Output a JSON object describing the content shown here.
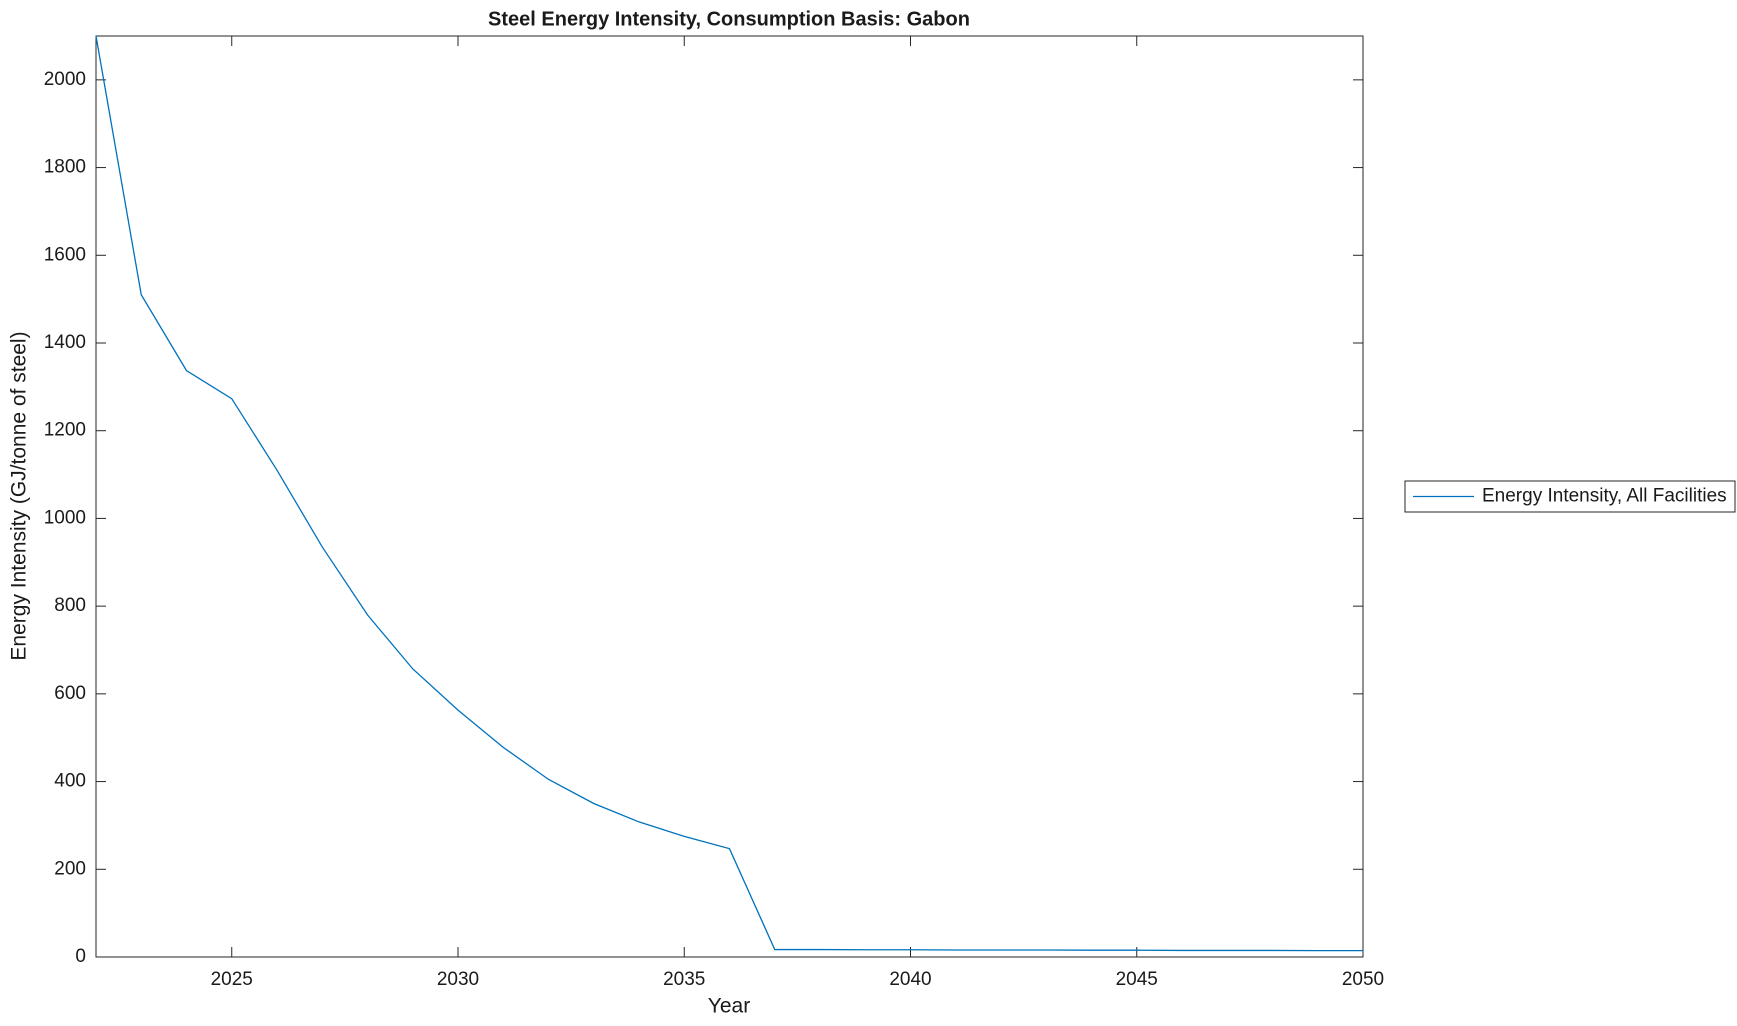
{
  "chart_data": {
    "type": "line",
    "title": "Steel Energy Intensity, Consumption Basis: Gabon",
    "x_label": "Year",
    "y_label": "Energy Intensity (GJ/tonne of steel)",
    "x": [
      2022,
      2023,
      2024,
      2025,
      2026,
      2027,
      2028,
      2029,
      2030,
      2031,
      2032,
      2033,
      2034,
      2035,
      2036,
      2037,
      2038,
      2039,
      2040,
      2041,
      2042,
      2043,
      2044,
      2045,
      2046,
      2047,
      2048,
      2049,
      2050
    ],
    "series": [
      {
        "name": "Energy Intensity, All Facilities",
        "color": "#0072bd",
        "values": [
          2100,
          1510,
          1337,
          1273,
          1110,
          935,
          780,
          657,
          563,
          478,
          405,
          350,
          308,
          275,
          247,
          17,
          17,
          16.5,
          16.5,
          16,
          16,
          16,
          15.5,
          15.5,
          15,
          15,
          15,
          14.5,
          14.5
        ]
      }
    ],
    "xlim": [
      2022,
      2050
    ],
    "xticks": [
      2025,
      2030,
      2035,
      2040,
      2045,
      2050
    ],
    "ylim": [
      0,
      2100
    ],
    "yticks": [
      0,
      200,
      400,
      600,
      800,
      1000,
      1200,
      1400,
      1600,
      1800,
      2000
    ],
    "grid": false,
    "legend": "outside-right"
  }
}
